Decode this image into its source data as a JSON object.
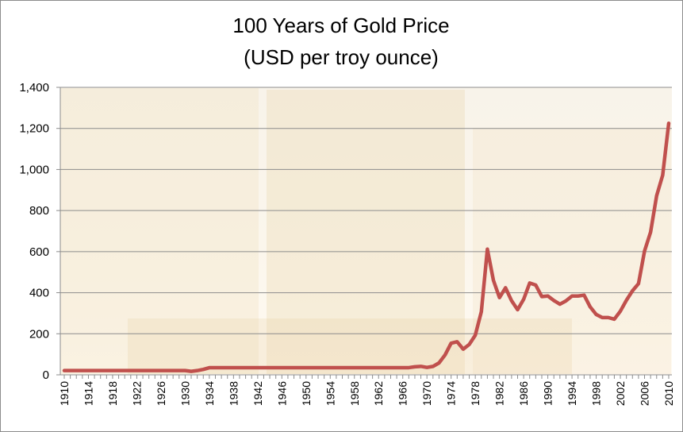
{
  "colors": {
    "line": "#c0504d",
    "grid": "#8c8c8c",
    "plot_bg": "#fbf5ea",
    "gold_light": "#f1e2c3",
    "gold_mid": "#e6cfa1"
  },
  "chart_data": {
    "type": "line",
    "title": "100 Years of Gold Price",
    "subtitle": "(USD per troy ounce)",
    "xlabel": "",
    "ylabel": "",
    "xlim": [
      1910,
      2010
    ],
    "ylim": [
      0,
      1400
    ],
    "grid": true,
    "legend": "none",
    "y_ticks": [
      "0",
      "200",
      "400",
      "600",
      "800",
      "1,000",
      "1,200",
      "1,400"
    ],
    "x_ticks": [
      "1910",
      "1914",
      "1918",
      "1922",
      "1926",
      "1930",
      "1934",
      "1938",
      "1942",
      "1946",
      "1950",
      "1954",
      "1958",
      "1962",
      "1966",
      "1970",
      "1974",
      "1978",
      "1982",
      "1986",
      "1990",
      "1994",
      "1998",
      "2002",
      "2006",
      "2010"
    ],
    "x": [
      1910,
      1911,
      1912,
      1913,
      1914,
      1915,
      1916,
      1917,
      1918,
      1919,
      1920,
      1921,
      1922,
      1923,
      1924,
      1925,
      1926,
      1927,
      1928,
      1929,
      1930,
      1931,
      1932,
      1933,
      1934,
      1935,
      1936,
      1937,
      1938,
      1939,
      1940,
      1941,
      1942,
      1943,
      1944,
      1945,
      1946,
      1947,
      1948,
      1949,
      1950,
      1951,
      1952,
      1953,
      1954,
      1955,
      1956,
      1957,
      1958,
      1959,
      1960,
      1961,
      1962,
      1963,
      1964,
      1965,
      1966,
      1967,
      1968,
      1969,
      1970,
      1971,
      1972,
      1973,
      1974,
      1975,
      1976,
      1977,
      1978,
      1979,
      1980,
      1981,
      1982,
      1983,
      1984,
      1985,
      1986,
      1987,
      1988,
      1989,
      1990,
      1991,
      1992,
      1993,
      1994,
      1995,
      1996,
      1997,
      1998,
      1999,
      2000,
      2001,
      2002,
      2003,
      2004,
      2005,
      2006,
      2007,
      2008,
      2009,
      2010
    ],
    "series": [
      {
        "values": [
          20.67,
          20.67,
          20.67,
          20.67,
          20.67,
          20.67,
          20.67,
          20.67,
          20.67,
          20.67,
          20.67,
          20.67,
          20.67,
          20.67,
          20.67,
          20.67,
          20.67,
          20.67,
          20.67,
          20.67,
          20.67,
          17.06,
          20.69,
          26.33,
          34.69,
          35,
          35,
          35,
          35,
          35,
          35,
          35,
          35,
          35,
          35,
          35,
          35,
          35,
          35,
          35,
          35,
          35,
          35,
          35,
          35,
          35,
          35,
          35,
          35,
          35,
          35,
          35,
          35,
          35,
          35,
          35,
          35,
          35,
          39.3,
          41.3,
          36,
          41,
          58,
          97,
          154,
          161,
          125,
          148,
          193,
          307,
          612,
          460,
          376,
          424,
          361,
          317,
          368,
          447,
          437,
          381,
          384,
          362,
          344,
          360,
          384,
          384,
          388,
          331,
          294,
          279,
          279,
          271,
          310,
          363,
          409,
          444,
          603,
          695,
          872,
          972,
          1225
        ]
      }
    ]
  }
}
